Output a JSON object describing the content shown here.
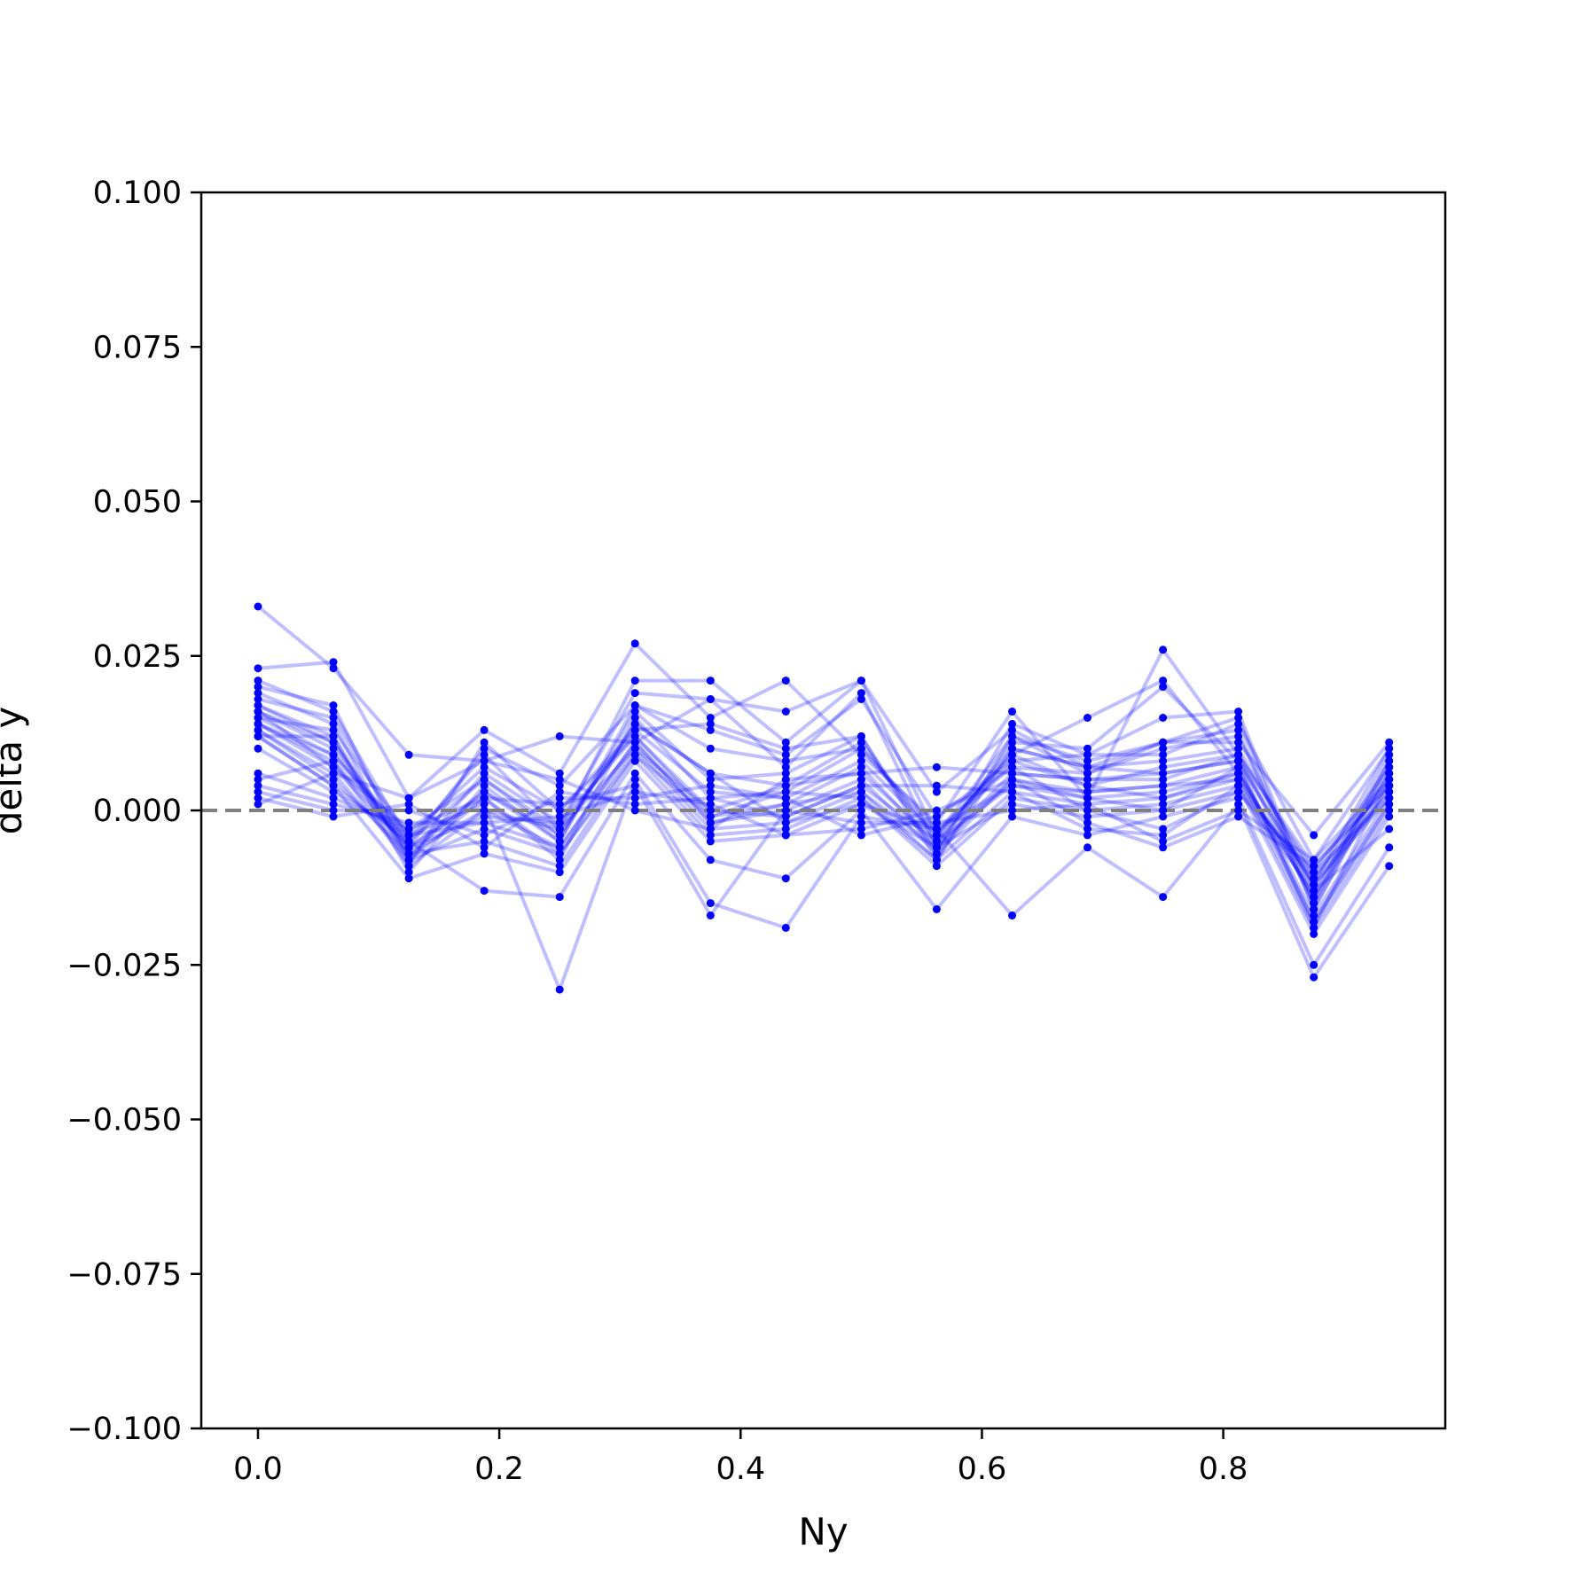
{
  "chart_data": {
    "type": "line",
    "title": "",
    "xlabel": "Ny",
    "ylabel": "delta y",
    "xlim": [
      -0.047,
      0.984
    ],
    "ylim": [
      -0.1,
      0.1
    ],
    "xticks": [
      0.0,
      0.2,
      0.4,
      0.6,
      0.8
    ],
    "xtick_labels": [
      "0.0",
      "0.2",
      "0.4",
      "0.6",
      "0.8"
    ],
    "yticks": [
      0.1,
      0.075,
      0.05,
      0.025,
      0.0,
      -0.025,
      -0.05,
      -0.075,
      -0.1
    ],
    "ytick_labels": [
      "0.100",
      "0.075",
      "0.050",
      "0.025",
      "0.000",
      "−0.025",
      "−0.050",
      "−0.075",
      "−0.100"
    ],
    "reference_line": {
      "y": 0.0,
      "style": "dashed",
      "color": "#808080"
    },
    "grid": false,
    "colors": {
      "series": "#0000ff",
      "line_opacity": 0.25
    },
    "x": [
      0.0,
      0.0625,
      0.125,
      0.1875,
      0.25,
      0.3125,
      0.375,
      0.4375,
      0.5,
      0.5625,
      0.625,
      0.6875,
      0.75,
      0.8125,
      0.875,
      0.9375
    ],
    "series": [
      {
        "values": [
          0.033,
          0.023,
          0.009,
          0.008,
          0.012,
          0.011,
          0.018,
          0.016,
          0.021,
          0.003,
          0.013,
          0.007,
          0.011,
          0.011,
          -0.004,
          0.011
        ]
      },
      {
        "values": [
          0.023,
          0.024,
          0.002,
          0.013,
          0.006,
          0.027,
          0.015,
          0.021,
          0.009,
          -0.002,
          0.016,
          0.002,
          0.026,
          0.009,
          -0.01,
          0.007
        ]
      },
      {
        "values": [
          0.021,
          0.016,
          -0.005,
          0.009,
          -0.003,
          0.021,
          0.021,
          0.011,
          0.021,
          -0.004,
          0.009,
          0.015,
          0.021,
          0.006,
          -0.014,
          0.009
        ]
      },
      {
        "values": [
          0.02,
          0.017,
          -0.008,
          0.006,
          -0.002,
          0.019,
          0.018,
          0.007,
          0.019,
          -0.006,
          0.011,
          0.01,
          0.02,
          0.008,
          -0.012,
          0.01
        ]
      },
      {
        "values": [
          0.018,
          0.015,
          -0.006,
          0.01,
          0.004,
          0.017,
          0.013,
          0.009,
          0.018,
          -0.001,
          0.008,
          0.009,
          0.015,
          0.016,
          -0.015,
          0.008
        ]
      },
      {
        "values": [
          0.017,
          0.012,
          -0.01,
          0.004,
          -0.005,
          0.016,
          0.005,
          0.006,
          0.012,
          -0.008,
          0.012,
          0.008,
          0.011,
          0.015,
          -0.016,
          0.007
        ]
      },
      {
        "values": [
          0.016,
          0.011,
          -0.006,
          0.002,
          -0.008,
          0.015,
          0.002,
          0.003,
          0.01,
          -0.003,
          0.007,
          0.006,
          0.01,
          0.012,
          -0.013,
          0.006
        ]
      },
      {
        "values": [
          0.016,
          0.01,
          -0.007,
          0.003,
          -0.004,
          0.014,
          0.006,
          0.004,
          0.011,
          -0.005,
          0.01,
          0.007,
          0.008,
          0.01,
          -0.011,
          0.005
        ]
      },
      {
        "values": [
          0.015,
          0.009,
          -0.005,
          0.005,
          -0.003,
          0.013,
          0.003,
          0.002,
          0.008,
          -0.004,
          0.009,
          0.004,
          0.007,
          0.009,
          -0.009,
          0.004
        ]
      },
      {
        "values": [
          0.015,
          0.013,
          -0.004,
          0.007,
          0.0,
          0.012,
          -0.001,
          0.001,
          0.007,
          -0.006,
          0.006,
          0.005,
          0.006,
          0.008,
          -0.012,
          0.003
        ]
      },
      {
        "values": [
          0.014,
          0.008,
          -0.009,
          0.0,
          -0.006,
          0.011,
          -0.002,
          0.0,
          0.005,
          -0.007,
          0.005,
          0.003,
          0.004,
          0.007,
          -0.017,
          0.002
        ]
      },
      {
        "values": [
          0.014,
          0.007,
          -0.006,
          -0.001,
          -0.002,
          0.012,
          0.0,
          -0.001,
          0.004,
          -0.005,
          0.004,
          0.002,
          0.003,
          0.006,
          -0.018,
          0.001
        ]
      },
      {
        "values": [
          0.013,
          0.006,
          -0.008,
          -0.003,
          -0.007,
          0.01,
          -0.003,
          -0.002,
          0.003,
          -0.008,
          0.003,
          0.001,
          0.002,
          0.005,
          -0.019,
          0.0
        ]
      },
      {
        "values": [
          0.013,
          0.005,
          -0.007,
          -0.005,
          -0.009,
          0.009,
          -0.004,
          -0.003,
          0.002,
          -0.009,
          0.002,
          0.0,
          0.001,
          0.004,
          -0.02,
          -0.001
        ]
      },
      {
        "values": [
          0.012,
          0.004,
          -0.011,
          -0.007,
          -0.01,
          0.008,
          -0.005,
          -0.004,
          0.001,
          -0.006,
          0.001,
          -0.001,
          0.0,
          0.003,
          -0.013,
          -0.003
        ]
      },
      {
        "values": [
          0.012,
          0.004,
          -0.005,
          -0.013,
          -0.014,
          0.006,
          -0.008,
          -0.011,
          0.0,
          -0.016,
          -0.001,
          -0.004,
          -0.001,
          0.002,
          -0.025,
          -0.006
        ]
      },
      {
        "values": [
          0.01,
          0.003,
          -0.004,
          0.001,
          -0.029,
          0.005,
          -0.015,
          -0.019,
          -0.001,
          -0.003,
          -0.017,
          -0.006,
          -0.014,
          0.001,
          -0.027,
          -0.009
        ]
      },
      {
        "values": [
          0.006,
          0.002,
          -0.003,
          0.002,
          0.001,
          0.004,
          -0.017,
          0.0,
          -0.002,
          -0.002,
          0.0,
          0.001,
          -0.005,
          0.0,
          -0.008,
          0.005
        ]
      },
      {
        "values": [
          0.004,
          0.001,
          -0.002,
          -0.002,
          -0.001,
          0.003,
          0.001,
          -0.004,
          -0.003,
          0.0,
          0.005,
          -0.002,
          -0.006,
          -0.001,
          -0.009,
          0.004
        ]
      },
      {
        "values": [
          0.003,
          0.0,
          0.0,
          -0.004,
          0.002,
          0.002,
          0.004,
          0.002,
          -0.004,
          -0.001,
          0.007,
          0.0,
          -0.003,
          0.003,
          -0.01,
          0.002
        ]
      },
      {
        "values": [
          0.002,
          -0.001,
          0.001,
          -0.006,
          0.003,
          0.001,
          0.002,
          -0.001,
          0.004,
          0.004,
          0.003,
          -0.003,
          -0.004,
          0.004,
          -0.011,
          0.003
        ]
      },
      {
        "values": [
          0.001,
          0.006,
          0.002,
          0.008,
          0.005,
          0.0,
          -0.003,
          0.005,
          0.006,
          0.007,
          0.006,
          0.005,
          0.005,
          0.009,
          -0.015,
          0.008
        ]
      },
      {
        "values": [
          0.019,
          0.014,
          -0.009,
          0.011,
          0.0,
          0.013,
          0.014,
          0.01,
          0.012,
          -0.007,
          0.014,
          0.009,
          0.009,
          0.014,
          -0.008,
          0.01
        ]
      },
      {
        "values": [
          0.005,
          0.008,
          -0.006,
          0.003,
          -0.005,
          0.017,
          0.01,
          0.008,
          0.01,
          -0.004,
          0.012,
          0.006,
          0.011,
          0.013,
          -0.016,
          0.006
        ]
      },
      {
        "values": [
          0.017,
          0.011,
          -0.007,
          0.0,
          -0.003,
          0.01,
          0.0,
          0.004,
          0.006,
          -0.005,
          0.008,
          0.004,
          0.002,
          0.006,
          -0.014,
          0.004
        ]
      },
      {
        "values": [
          0.014,
          0.009,
          -0.004,
          -0.002,
          -0.006,
          0.011,
          -0.002,
          0.001,
          0.003,
          -0.006,
          0.005,
          0.002,
          0.0,
          0.007,
          -0.018,
          0.001
        ]
      },
      {
        "values": [
          0.016,
          0.007,
          -0.003,
          0.005,
          -0.004,
          0.014,
          0.006,
          -0.002,
          0.001,
          -0.003,
          0.004,
          0.003,
          0.004,
          0.005,
          -0.012,
          0.002
        ]
      },
      {
        "values": [
          0.012,
          0.012,
          -0.008,
          0.002,
          -0.007,
          0.009,
          -0.001,
          0.003,
          0.002,
          -0.008,
          0.01,
          0.007,
          0.006,
          0.008,
          -0.019,
          0.005
        ]
      }
    ]
  }
}
